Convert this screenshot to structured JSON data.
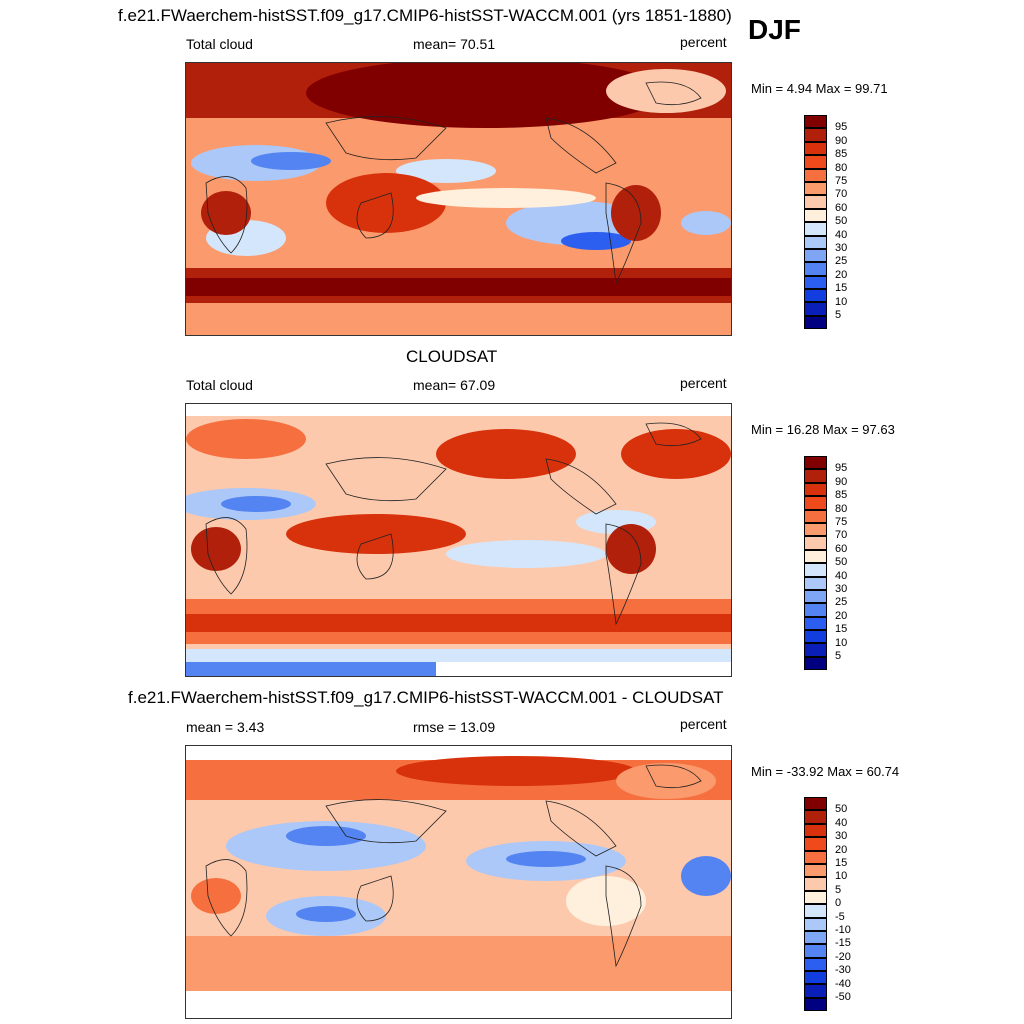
{
  "season": "DJF",
  "panels": [
    {
      "id": "model",
      "title": "f.e21.FWaerchem-histSST.f09_g17.CMIP6-histSST-WACCM.001 (yrs 1851-1880)",
      "left_label": "Total cloud",
      "center_label": "mean=  70.51",
      "right_label": "percent",
      "minmax": "Min =   4.94 Max =  99.71",
      "colorbar_levels": [
        "95",
        "90",
        "85",
        "80",
        "75",
        "70",
        "60",
        "50",
        "40",
        "30",
        "25",
        "20",
        "15",
        "10",
        "5"
      ],
      "colorbar_colors": [
        "#800000",
        "#b1200b",
        "#d8320c",
        "#ee4a1b",
        "#f6703f",
        "#fb9a6c",
        "#fdc9ad",
        "#fff0dd",
        "#d4e6fb",
        "#abc8f8",
        "#7fa6f5",
        "#5484f1",
        "#2c5ff0",
        "#123ee0",
        "#0a1fb8",
        "#000080"
      ]
    },
    {
      "id": "obs",
      "title": "CLOUDSAT",
      "left_label": "Total cloud",
      "center_label": "mean=  67.09",
      "right_label": "percent",
      "minmax": "Min =  16.28 Max =  97.63",
      "colorbar_levels": [
        "95",
        "90",
        "85",
        "80",
        "75",
        "70",
        "60",
        "50",
        "40",
        "30",
        "25",
        "20",
        "15",
        "10",
        "5"
      ],
      "colorbar_colors": [
        "#800000",
        "#b1200b",
        "#d8320c",
        "#ee4a1b",
        "#f6703f",
        "#fb9a6c",
        "#fdc9ad",
        "#fff0dd",
        "#d4e6fb",
        "#abc8f8",
        "#7fa6f5",
        "#5484f1",
        "#2c5ff0",
        "#123ee0",
        "#0a1fb8",
        "#000080"
      ]
    },
    {
      "id": "diff",
      "title": "f.e21.FWaerchem-histSST.f09_g17.CMIP6-histSST-WACCM.001 - CLOUDSAT",
      "left_label": "mean =   3.43",
      "center_label": "rmse =  13.09",
      "right_label": "percent",
      "minmax": "Min = -33.92 Max =  60.74",
      "colorbar_levels": [
        "50",
        "40",
        "30",
        "20",
        "15",
        "10",
        "5",
        "0",
        "-5",
        "-10",
        "-15",
        "-20",
        "-30",
        "-40",
        "-50"
      ],
      "colorbar_colors": [
        "#800000",
        "#b1200b",
        "#d8320c",
        "#ee4a1b",
        "#f6703f",
        "#fb9a6c",
        "#fdc9ad",
        "#fff0dd",
        "#d4e6fb",
        "#abc8f8",
        "#7fa6f5",
        "#5484f1",
        "#2c5ff0",
        "#123ee0",
        "#0a1fb8",
        "#000080"
      ]
    }
  ]
}
